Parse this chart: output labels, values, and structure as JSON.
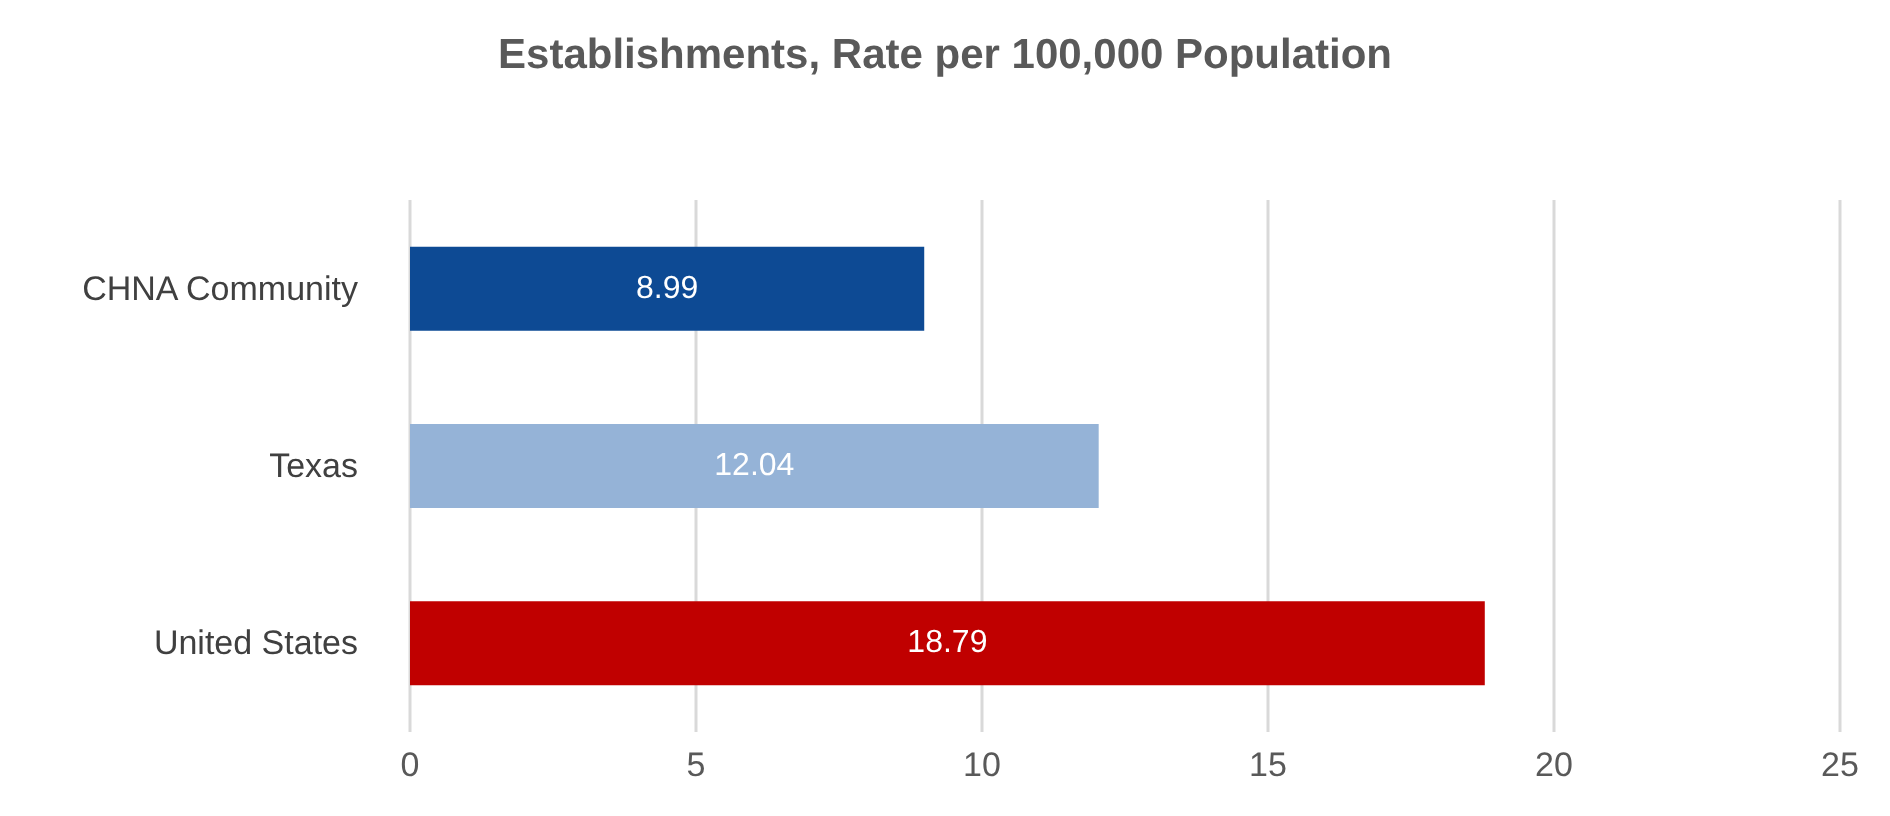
{
  "chart_data": {
    "type": "bar",
    "title": "Establishments, Rate per 100,000 Population",
    "orientation": "horizontal",
    "categories": [
      "CHNA Community",
      "Texas",
      "United States"
    ],
    "values": [
      8.99,
      12.04,
      18.79
    ],
    "colors": [
      "#0d4a94",
      "#95b3d7",
      "#c00000"
    ],
    "xlim": [
      0,
      25
    ],
    "xticks": [
      0,
      5,
      10,
      15,
      20,
      25
    ],
    "grid": "x",
    "data_labels": true
  }
}
